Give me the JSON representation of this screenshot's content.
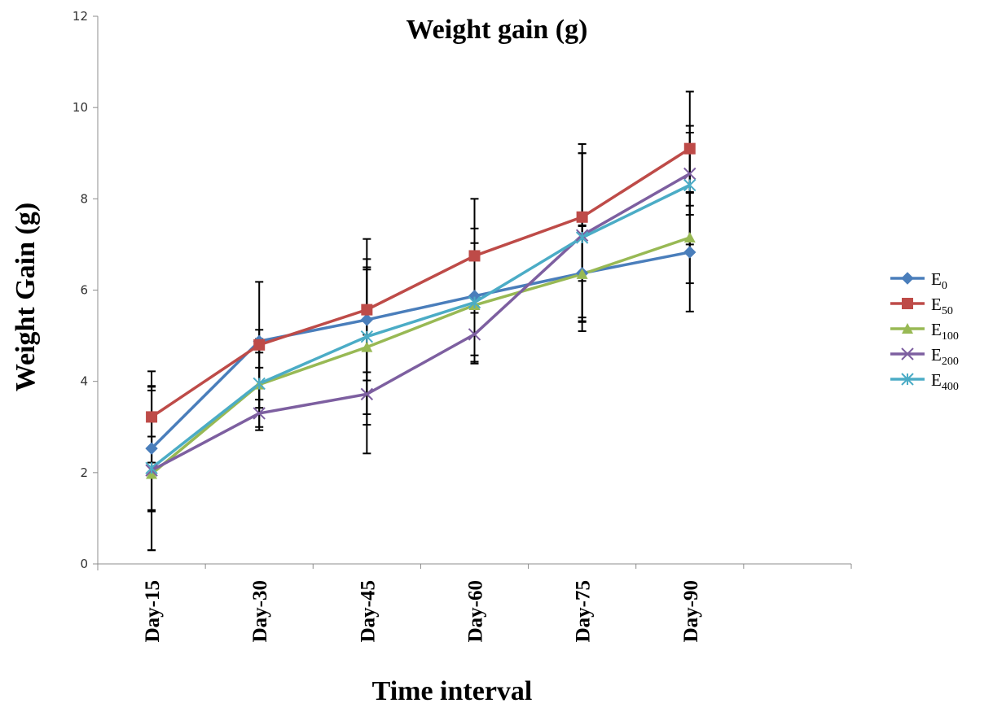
{
  "chart_data": {
    "type": "line",
    "title": "Weight gain (g)",
    "xlabel": "Time interval",
    "ylabel": "Weight Gain (g)",
    "ylim": [
      0,
      12
    ],
    "yticks": [
      "0",
      "2",
      "4",
      "6",
      "8",
      "10",
      "12"
    ],
    "categories": [
      "Day-15",
      "Day-30",
      "Day-45",
      "Day-60",
      "Day-75",
      "Day-90"
    ],
    "grid": false,
    "legend_position": "right",
    "series": [
      {
        "name": "E",
        "subscript": "0",
        "color": "#4A7EBB",
        "marker": "diamond",
        "values": [
          2.53,
          4.88,
          5.35,
          5.87,
          6.37,
          6.83
        ],
        "error": [
          1.35,
          0.25,
          1.15,
          1.48,
          1.05,
          1.3
        ]
      },
      {
        "name": "E",
        "subscript": "50",
        "color": "#BE4B48",
        "marker": "square",
        "values": [
          3.22,
          4.8,
          5.57,
          6.75,
          7.6,
          9.1
        ],
        "error": [
          1.0,
          1.38,
          1.55,
          1.25,
          1.4,
          1.25
        ]
      },
      {
        "name": "E",
        "subscript": "100",
        "color": "#98B954",
        "marker": "triangle",
        "values": [
          1.97,
          3.93,
          4.75,
          5.67,
          6.35,
          7.15
        ],
        "error": [
          0.82,
          1.0,
          1.7,
          1.1,
          1.05,
          1.0
        ]
      },
      {
        "name": "E",
        "subscript": "200",
        "color": "#7D5FA0",
        "marker": "x",
        "values": [
          2.05,
          3.3,
          3.72,
          5.03,
          7.2,
          8.55
        ],
        "error": [
          1.75,
          0.3,
          1.3,
          0.6,
          1.8,
          0.9
        ]
      },
      {
        "name": "E",
        "subscript": "400",
        "color": "#4BACC6",
        "marker": "star",
        "values": [
          2.1,
          3.95,
          4.98,
          5.73,
          7.15,
          8.3
        ],
        "error": [
          1.8,
          0.35,
          1.7,
          1.3,
          2.05,
          1.3
        ]
      }
    ]
  }
}
